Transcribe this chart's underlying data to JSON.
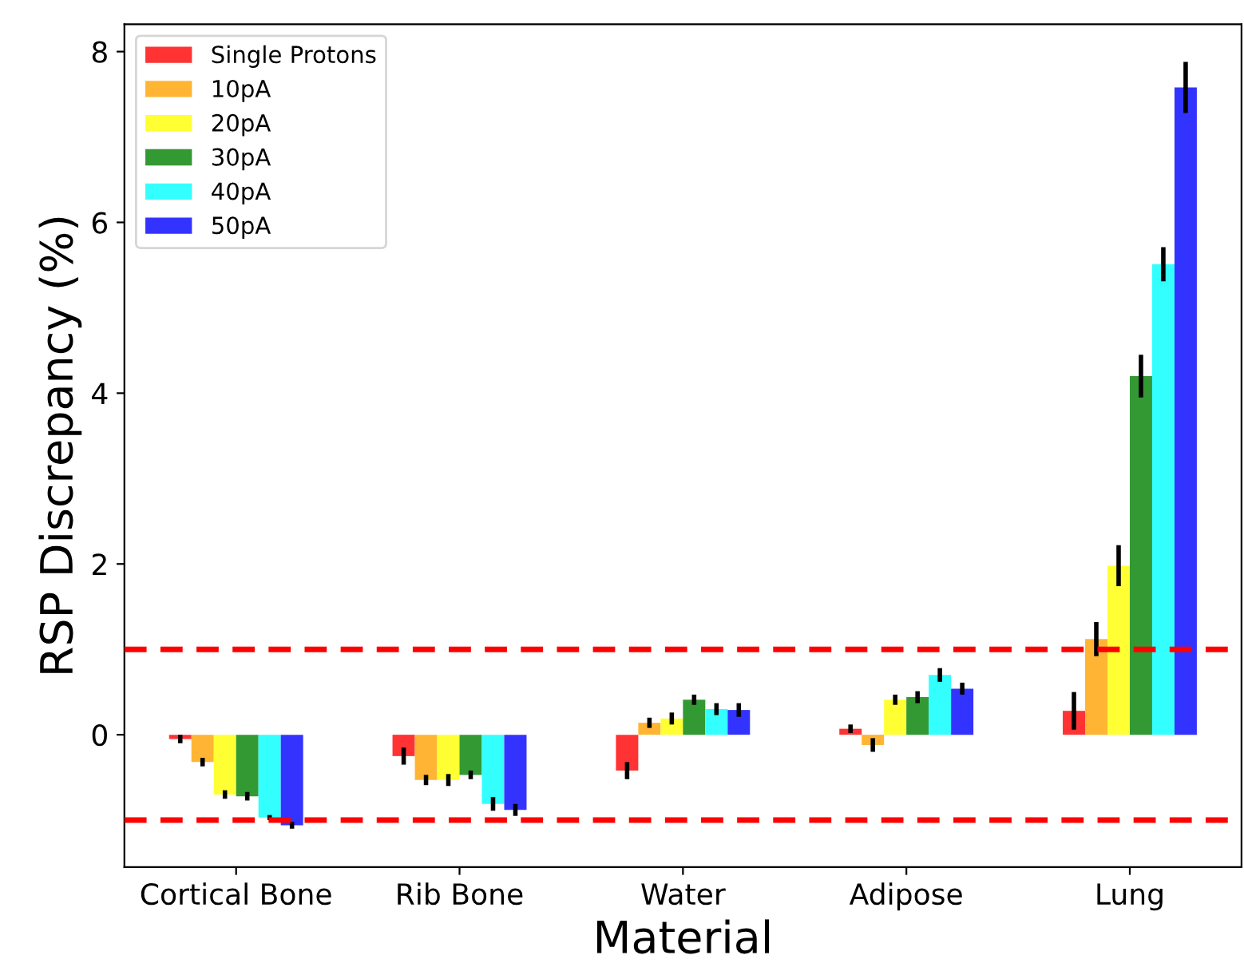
{
  "chart_data": {
    "type": "bar",
    "xlabel": "Material",
    "ylabel": "RSP Discrepancy (%)",
    "categories": [
      "Cortical Bone",
      "Rib Bone",
      "Water",
      "Adipose",
      "Lung"
    ],
    "series": [
      {
        "name": "Single Protons",
        "color": "#ff3333",
        "values": [
          -0.05,
          -0.25,
          -0.42,
          0.07,
          0.28
        ],
        "errors": [
          0.05,
          0.1,
          0.1,
          0.05,
          0.22
        ]
      },
      {
        "name": "10pA",
        "color": "#ffb533",
        "values": [
          -0.32,
          -0.53,
          0.14,
          -0.12,
          1.12
        ],
        "errors": [
          0.05,
          0.06,
          0.06,
          0.08,
          0.2
        ]
      },
      {
        "name": "20pA",
        "color": "#ffff33",
        "values": [
          -0.7,
          -0.53,
          0.19,
          0.41,
          1.98
        ],
        "errors": [
          0.05,
          0.07,
          0.07,
          0.06,
          0.24
        ]
      },
      {
        "name": "30pA",
        "color": "#339933",
        "values": [
          -0.72,
          -0.47,
          0.41,
          0.44,
          4.2
        ],
        "errors": [
          0.05,
          0.05,
          0.06,
          0.07,
          0.25
        ]
      },
      {
        "name": "40pA",
        "color": "#33ffff",
        "values": [
          -0.97,
          -0.81,
          0.3,
          0.7,
          5.51
        ],
        "errors": [
          0.03,
          0.08,
          0.07,
          0.08,
          0.2
        ]
      },
      {
        "name": "50pA",
        "color": "#3333ff",
        "values": [
          -1.06,
          -0.88,
          0.29,
          0.54,
          7.58
        ],
        "errors": [
          0.04,
          0.07,
          0.08,
          0.07,
          0.3
        ]
      }
    ],
    "ylim": [
      -1.55,
      8.32
    ],
    "yticks": [
      0,
      2,
      4,
      6,
      8
    ],
    "ref_lines": [
      {
        "axis": "y",
        "value": 1,
        "color": "#ff0000",
        "line_style": "dashed"
      },
      {
        "axis": "y",
        "value": -1,
        "color": "#ff0000",
        "line_style": "dashed"
      }
    ],
    "legend": "top left",
    "grid": false
  }
}
